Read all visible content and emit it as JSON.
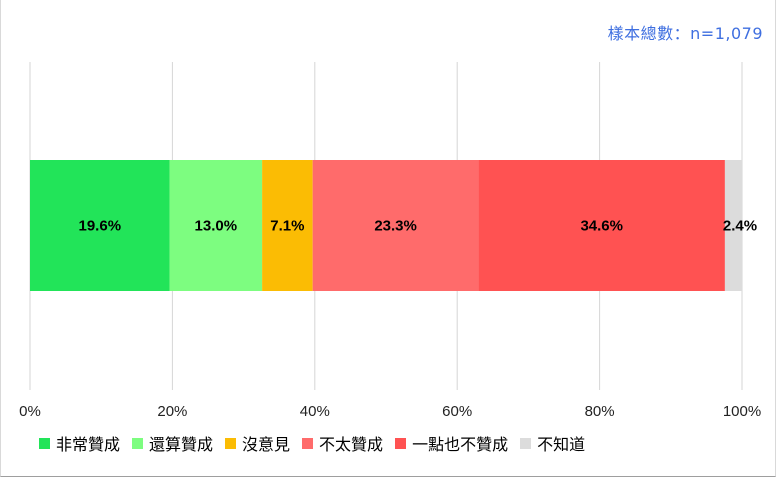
{
  "sample_text": "樣本總數：n=1,079",
  "chart_data": {
    "type": "bar",
    "orientation": "horizontal",
    "stacked": true,
    "xlim": [
      0,
      100
    ],
    "x_ticks": [
      "0%",
      "20%",
      "40%",
      "60%",
      "80%",
      "100%"
    ],
    "grid": true,
    "legend_position": "bottom",
    "series": [
      {
        "name": "非常贊成",
        "value": 19.6,
        "label": "19.6%",
        "color": "#22e459"
      },
      {
        "name": "還算贊成",
        "value": 13.0,
        "label": "13.0%",
        "color": "#7dfd80"
      },
      {
        "name": "沒意見",
        "value": 7.1,
        "label": "7.1%",
        "color": "#fbbc04"
      },
      {
        "name": "不太贊成",
        "value": 23.3,
        "label": "23.3%",
        "color": "#ff6b6b"
      },
      {
        "name": "一點也不贊成",
        "value": 34.6,
        "label": "34.6%",
        "color": "#ff5252"
      },
      {
        "name": "不知道",
        "value": 2.4,
        "label": "2.4%",
        "color": "#dcdcdc"
      }
    ]
  }
}
